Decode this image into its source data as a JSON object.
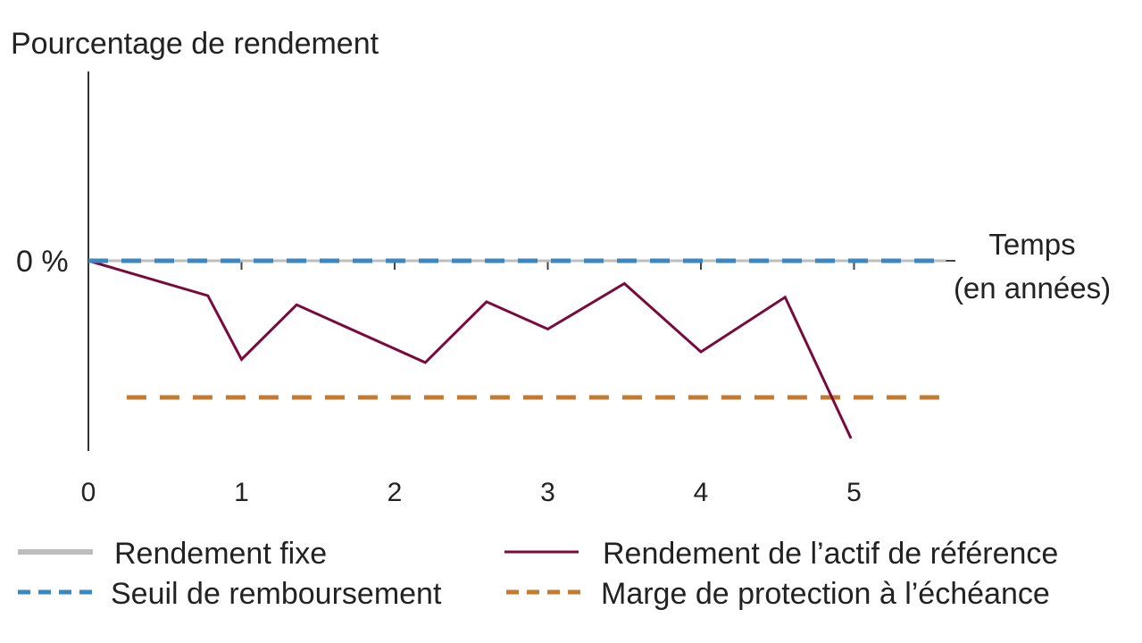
{
  "chart_data": {
    "type": "line",
    "ylabel": "Pourcentage de rendement",
    "xlabel_line1": "Temps",
    "xlabel_line2": "(en années)",
    "y_zero_label": "0 %",
    "x_ticks": [
      "0",
      "1",
      "2",
      "3",
      "4",
      "5"
    ],
    "xlim": [
      0,
      5.6
    ],
    "ylim": [
      -1.2,
      1.3
    ],
    "series": [
      {
        "name": "Rendement fixe",
        "color": "#bdbdbd",
        "style": "solid",
        "x": [
          0,
          5.6
        ],
        "y": [
          0,
          0
        ]
      },
      {
        "name": "Rendement de l’actif de référence",
        "color": "#7a0a3c",
        "style": "solid",
        "x": [
          0,
          0.78,
          1.0,
          1.36,
          2.2,
          2.6,
          3.0,
          3.5,
          4.0,
          4.55,
          4.98
        ],
        "y": [
          0,
          -0.23,
          -0.65,
          -0.29,
          -0.67,
          -0.27,
          -0.45,
          -0.15,
          -0.6,
          -0.24,
          -1.17
        ]
      },
      {
        "name": "Seuil de remboursement",
        "color": "#3a87c1",
        "style": "dashed",
        "x": [
          0,
          5.6
        ],
        "y": [
          0,
          0
        ]
      },
      {
        "name": "Marge de protection à l’échéance",
        "color": "#c27b30",
        "style": "dashed",
        "x": [
          0.25,
          5.6
        ],
        "y": [
          -0.9,
          -0.9
        ]
      }
    ]
  }
}
